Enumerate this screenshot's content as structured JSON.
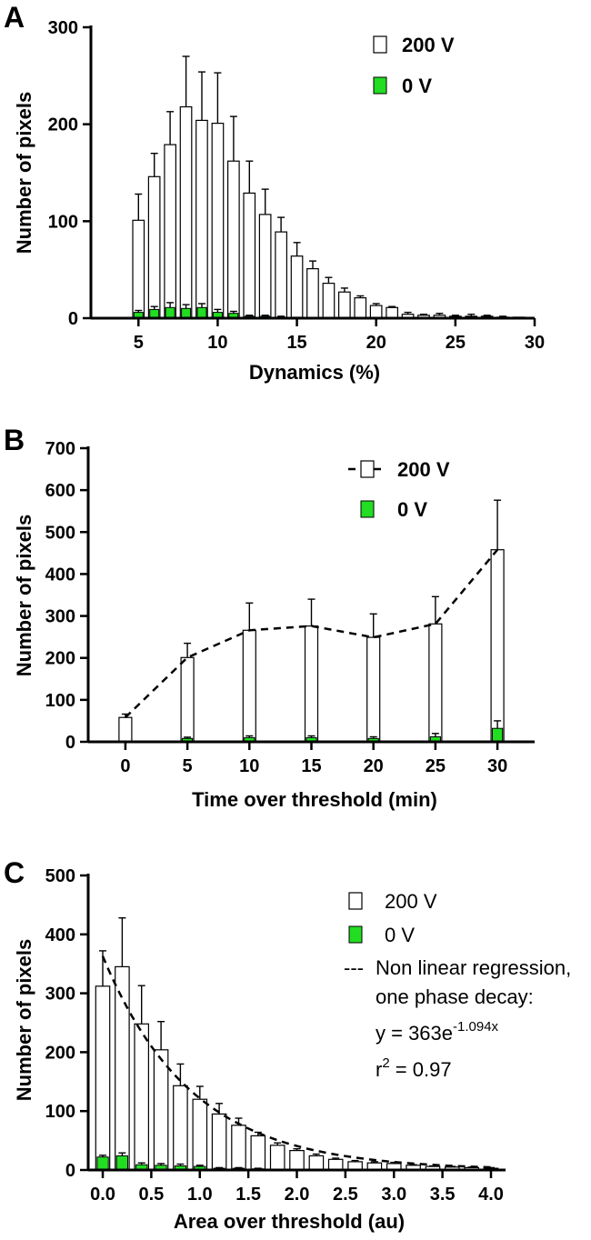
{
  "chart_data": [
    {
      "panel": "A",
      "type": "bar",
      "xlabel": "Dynamics (%)",
      "ylabel": "Number of pixels",
      "xlim": [
        2,
        30
      ],
      "ylim": [
        0,
        300
      ],
      "xticks": [
        5,
        10,
        15,
        20,
        25,
        30
      ],
      "yticks": [
        0,
        100,
        200,
        300
      ],
      "x": [
        5,
        6,
        7,
        8,
        9,
        10,
        11,
        12,
        13,
        14,
        15,
        16,
        17,
        18,
        19,
        20,
        21,
        22,
        23,
        24,
        25,
        26,
        27,
        28,
        29
      ],
      "series": [
        {
          "name": "200 V",
          "values": [
            101,
            146,
            179,
            218,
            204,
            201,
            162,
            129,
            107,
            89,
            64,
            51,
            36,
            27,
            21,
            13,
            11,
            4,
            3,
            3,
            2,
            2,
            2,
            1,
            1
          ],
          "errors": [
            27,
            24,
            34,
            52,
            50,
            52,
            46,
            33,
            26,
            15,
            14,
            8,
            6,
            4,
            2,
            2,
            1,
            2,
            1,
            2,
            1,
            2,
            1,
            1,
            0
          ]
        },
        {
          "name": "0 V",
          "values": [
            6,
            9,
            11,
            10,
            11,
            6,
            5,
            2,
            2,
            1,
            1,
            0,
            0,
            0,
            0,
            0,
            0,
            0,
            0,
            0,
            0,
            0,
            0,
            0,
            0
          ],
          "errors": [
            2,
            3,
            5,
            4,
            4,
            3,
            2,
            1,
            1,
            1,
            0,
            0,
            0,
            0,
            0,
            0,
            0,
            0,
            0,
            0,
            0,
            0,
            0,
            0,
            0
          ]
        }
      ],
      "legend": [
        {
          "label": "200 V",
          "marker": "open-square"
        },
        {
          "label": "0 V",
          "marker": "green-square"
        }
      ]
    },
    {
      "panel": "B",
      "type": "bar",
      "xlabel": "Time over threshold  (min)",
      "ylabel": "Number of pixels",
      "xlim": [
        -3,
        33
      ],
      "ylim": [
        0,
        700
      ],
      "xticks": [
        0,
        5,
        10,
        15,
        20,
        25,
        30
      ],
      "yticks": [
        0,
        100,
        200,
        300,
        400,
        500,
        600,
        700
      ],
      "x": [
        0,
        5,
        10,
        15,
        20,
        25,
        30
      ],
      "series": [
        {
          "name": "200 V",
          "values": [
            58,
            201,
            266,
            276,
            249,
            281,
            458
          ],
          "errors": [
            8,
            34,
            65,
            64,
            56,
            65,
            118
          ]
        },
        {
          "name": "0 V",
          "values": [
            0,
            8,
            10,
            10,
            8,
            12,
            32
          ],
          "errors": [
            0,
            3,
            4,
            4,
            4,
            8,
            18
          ]
        }
      ],
      "trend_line": {
        "x": [
          0,
          5,
          10,
          15,
          20,
          25,
          30
        ],
        "y": [
          58,
          201,
          266,
          276,
          249,
          281,
          458
        ]
      },
      "legend": [
        {
          "label": "200 V",
          "marker": "dashed-line-open-square"
        },
        {
          "label": "0 V",
          "marker": "green-square"
        }
      ]
    },
    {
      "panel": "C",
      "type": "bar",
      "xlabel": "Area over threshold  (au)",
      "ylabel": "Number of pixels",
      "xlim": [
        -0.15,
        4.15
      ],
      "ylim": [
        0,
        500
      ],
      "xticks": [
        "0.0",
        "0.5",
        "1.0",
        "1.5",
        "2.0",
        "2.5",
        "3.0",
        "3.5",
        "4.0"
      ],
      "yticks": [
        0,
        100,
        200,
        300,
        400,
        500
      ],
      "x": [
        0.0,
        0.2,
        0.4,
        0.6,
        0.8,
        1.0,
        1.2,
        1.4,
        1.6,
        1.8,
        2.0,
        2.2,
        2.4,
        2.6,
        2.8,
        3.0,
        3.2,
        3.4,
        3.6,
        3.8,
        4.0
      ],
      "series": [
        {
          "name": "200 V",
          "values": [
            312,
            345,
            248,
            204,
            143,
            120,
            95,
            76,
            58,
            42,
            33,
            24,
            18,
            14,
            12,
            11,
            8,
            6,
            5,
            4,
            3
          ],
          "errors": [
            60,
            83,
            65,
            48,
            37,
            22,
            18,
            12,
            6,
            4,
            3,
            3,
            2,
            2,
            2,
            2,
            1,
            1,
            1,
            1,
            1
          ]
        },
        {
          "name": "0 V",
          "values": [
            22,
            24,
            9,
            8,
            7,
            6,
            3,
            3,
            2,
            1,
            1,
            1,
            0,
            0,
            0,
            0,
            0,
            0,
            0,
            0,
            0
          ],
          "errors": [
            3,
            5,
            3,
            3,
            3,
            2,
            1,
            1,
            1,
            0,
            0,
            0,
            0,
            0,
            0,
            0,
            0,
            0,
            0,
            0,
            0
          ]
        }
      ],
      "fit": {
        "type": "one phase decay",
        "a": 363,
        "k": 1.094
      },
      "legend": [
        {
          "label": "200 V",
          "marker": "open-square"
        },
        {
          "label": "0 V",
          "marker": "green-square"
        }
      ],
      "legend_text": {
        "fit_prefix": "---",
        "fit_line1": "Non linear regression,",
        "fit_line2": "one phase decay:",
        "eq_main": "y = 363e",
        "eq_exp": "-1.094x",
        "r2_main": "r",
        "r2_sup": "2",
        "r2_value": " = 0.97"
      }
    }
  ],
  "panel_labels": [
    "A",
    "B",
    "C"
  ],
  "colors": {
    "green": "#22dd22",
    "open": "#ffffff",
    "stroke": "#000000"
  }
}
